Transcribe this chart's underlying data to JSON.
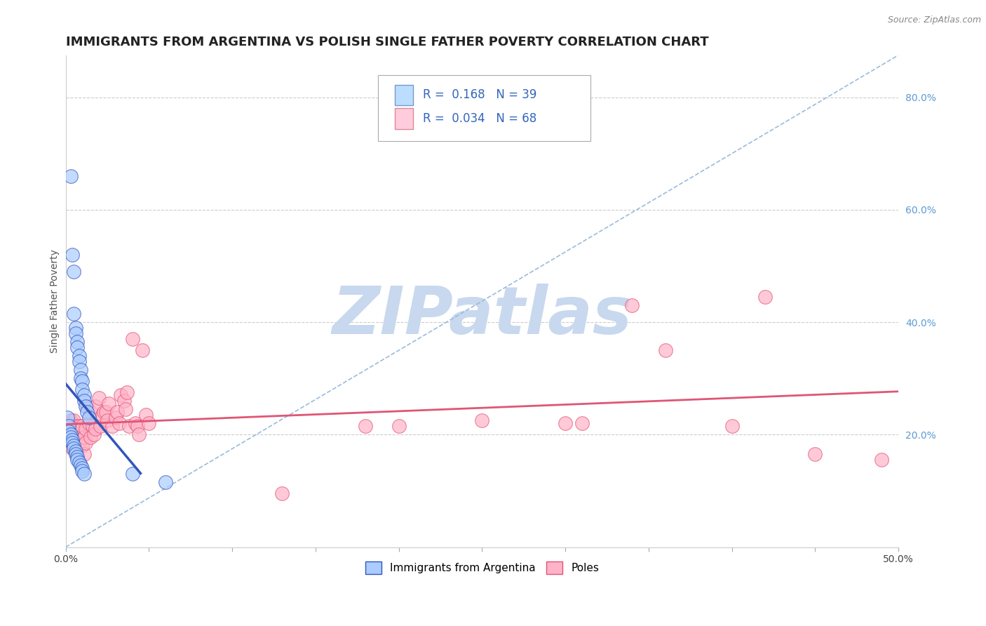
{
  "title": "IMMIGRANTS FROM ARGENTINA VS POLISH SINGLE FATHER POVERTY CORRELATION CHART",
  "source": "Source: ZipAtlas.com",
  "ylabel": "Single Father Poverty",
  "xlim": [
    0.0,
    0.5
  ],
  "ylim": [
    0.0,
    0.875
  ],
  "xticks": [
    0.0,
    0.05,
    0.1,
    0.15,
    0.2,
    0.25,
    0.3,
    0.35,
    0.4,
    0.45,
    0.5
  ],
  "yticks_right": [
    0.2,
    0.4,
    0.6,
    0.8
  ],
  "ytick_right_labels": [
    "20.0%",
    "40.0%",
    "60.0%",
    "80.0%"
  ],
  "legend_label1": "Immigrants from Argentina",
  "legend_label2": "Poles",
  "color_blue": "#aaccff",
  "color_pink": "#ffb3c8",
  "line_blue": "#3355bb",
  "line_pink": "#e05575",
  "line_dash_color": "#99bbdd",
  "watermark": "ZIPatlas",
  "watermark_color": "#c8d8ee",
  "blue_points": [
    [
      0.003,
      0.66
    ],
    [
      0.004,
      0.52
    ],
    [
      0.005,
      0.49
    ],
    [
      0.005,
      0.415
    ],
    [
      0.006,
      0.39
    ],
    [
      0.006,
      0.38
    ],
    [
      0.007,
      0.365
    ],
    [
      0.007,
      0.355
    ],
    [
      0.008,
      0.34
    ],
    [
      0.008,
      0.33
    ],
    [
      0.009,
      0.315
    ],
    [
      0.009,
      0.3
    ],
    [
      0.01,
      0.295
    ],
    [
      0.01,
      0.28
    ],
    [
      0.011,
      0.27
    ],
    [
      0.011,
      0.26
    ],
    [
      0.012,
      0.25
    ],
    [
      0.013,
      0.24
    ],
    [
      0.014,
      0.23
    ],
    [
      0.001,
      0.23
    ],
    [
      0.002,
      0.215
    ],
    [
      0.002,
      0.205
    ],
    [
      0.003,
      0.2
    ],
    [
      0.003,
      0.195
    ],
    [
      0.004,
      0.19
    ],
    [
      0.004,
      0.185
    ],
    [
      0.005,
      0.18
    ],
    [
      0.005,
      0.175
    ],
    [
      0.006,
      0.17
    ],
    [
      0.006,
      0.165
    ],
    [
      0.007,
      0.16
    ],
    [
      0.007,
      0.155
    ],
    [
      0.008,
      0.15
    ],
    [
      0.009,
      0.145
    ],
    [
      0.01,
      0.14
    ],
    [
      0.01,
      0.135
    ],
    [
      0.011,
      0.13
    ],
    [
      0.04,
      0.13
    ],
    [
      0.06,
      0.115
    ]
  ],
  "pink_points": [
    [
      0.001,
      0.215
    ],
    [
      0.002,
      0.22
    ],
    [
      0.002,
      0.2
    ],
    [
      0.003,
      0.225
    ],
    [
      0.003,
      0.21
    ],
    [
      0.004,
      0.215
    ],
    [
      0.004,
      0.2
    ],
    [
      0.004,
      0.175
    ],
    [
      0.005,
      0.225
    ],
    [
      0.005,
      0.205
    ],
    [
      0.005,
      0.19
    ],
    [
      0.006,
      0.215
    ],
    [
      0.006,
      0.2
    ],
    [
      0.007,
      0.21
    ],
    [
      0.007,
      0.185
    ],
    [
      0.008,
      0.215
    ],
    [
      0.008,
      0.18
    ],
    [
      0.009,
      0.21
    ],
    [
      0.009,
      0.195
    ],
    [
      0.01,
      0.215
    ],
    [
      0.01,
      0.18
    ],
    [
      0.011,
      0.195
    ],
    [
      0.011,
      0.165
    ],
    [
      0.012,
      0.21
    ],
    [
      0.012,
      0.185
    ],
    [
      0.013,
      0.25
    ],
    [
      0.014,
      0.22
    ],
    [
      0.015,
      0.24
    ],
    [
      0.015,
      0.195
    ],
    [
      0.016,
      0.215
    ],
    [
      0.017,
      0.2
    ],
    [
      0.018,
      0.25
    ],
    [
      0.018,
      0.21
    ],
    [
      0.02,
      0.265
    ],
    [
      0.021,
      0.215
    ],
    [
      0.022,
      0.235
    ],
    [
      0.023,
      0.24
    ],
    [
      0.024,
      0.24
    ],
    [
      0.025,
      0.225
    ],
    [
      0.026,
      0.255
    ],
    [
      0.028,
      0.215
    ],
    [
      0.03,
      0.23
    ],
    [
      0.031,
      0.24
    ],
    [
      0.032,
      0.22
    ],
    [
      0.033,
      0.27
    ],
    [
      0.035,
      0.26
    ],
    [
      0.036,
      0.245
    ],
    [
      0.037,
      0.275
    ],
    [
      0.038,
      0.215
    ],
    [
      0.04,
      0.37
    ],
    [
      0.042,
      0.22
    ],
    [
      0.043,
      0.215
    ],
    [
      0.044,
      0.2
    ],
    [
      0.046,
      0.35
    ],
    [
      0.048,
      0.235
    ],
    [
      0.05,
      0.22
    ],
    [
      0.18,
      0.215
    ],
    [
      0.2,
      0.215
    ],
    [
      0.25,
      0.225
    ],
    [
      0.3,
      0.22
    ],
    [
      0.34,
      0.43
    ],
    [
      0.36,
      0.35
    ],
    [
      0.4,
      0.215
    ],
    [
      0.31,
      0.22
    ],
    [
      0.42,
      0.445
    ],
    [
      0.45,
      0.165
    ],
    [
      0.13,
      0.095
    ],
    [
      0.49,
      0.155
    ]
  ],
  "title_fontsize": 13,
  "axis_fontsize": 10,
  "tick_fontsize": 10,
  "legend_fontsize": 12
}
